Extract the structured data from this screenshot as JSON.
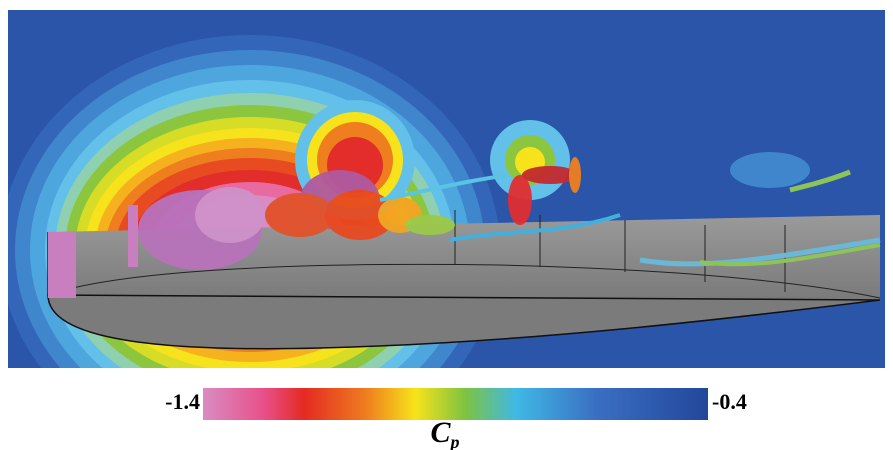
{
  "colorbar": {
    "min": -1.4,
    "max": -0.4,
    "label": "C",
    "label_subscript": "p"
  }
}
